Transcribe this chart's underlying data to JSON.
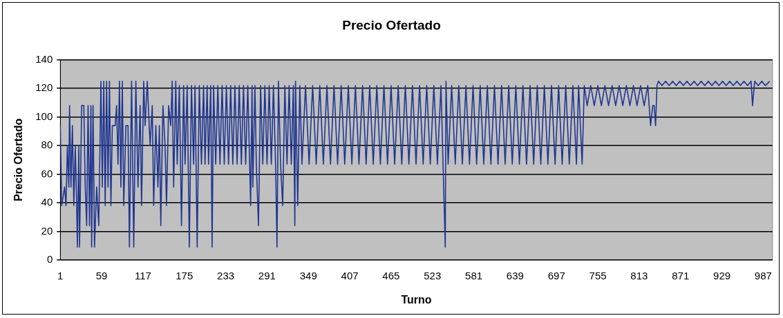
{
  "chart_data": {
    "type": "line",
    "title": "Precio Ofertado",
    "xlabel": "Turno",
    "ylabel": "Precio Ofertado",
    "xlim": [
      1,
      1000
    ],
    "xticks": [
      1,
      59,
      117,
      175,
      233,
      291,
      349,
      407,
      465,
      523,
      581,
      639,
      697,
      755,
      813,
      871,
      929,
      987
    ],
    "ylim": [
      0,
      140
    ],
    "yticks": [
      0,
      20,
      40,
      60,
      80,
      100,
      120,
      140
    ],
    "grid": "y",
    "legend": false,
    "marker": "none",
    "line_style": "solid",
    "series": [
      {
        "color": "#1f3590",
        "x": [
          1,
          3,
          7,
          9,
          11,
          13,
          14,
          16,
          18,
          20,
          22,
          24,
          25,
          27,
          28,
          31,
          34,
          36,
          38,
          40,
          42,
          44,
          45,
          47,
          49,
          52,
          55,
          58,
          60,
          62,
          64,
          66,
          68,
          70,
          72,
          74,
          76,
          78,
          80,
          82,
          84,
          86,
          88,
          90,
          93,
          96,
          98,
          101,
          104,
          107,
          110,
          113,
          115,
          118,
          120,
          123,
          127,
          130,
          132,
          135,
          138,
          140,
          142,
          145,
          148,
          150,
          153,
          156,
          158,
          160,
          163,
          165,
          168,
          171,
          174,
          176,
          179,
          182,
          185,
          188,
          190,
          193,
          196,
          199,
          202,
          204,
          207,
          209,
          212,
          214,
          216,
          219,
          222,
          225,
          228,
          231,
          234,
          237,
          240,
          243,
          246,
          249,
          252,
          255,
          258,
          261,
          264,
          268,
          270,
          271,
          274,
          276,
          279,
          282,
          285,
          288,
          291,
          294,
          297,
          300,
          303,
          305,
          307,
          310,
          313,
          316,
          319,
          322,
          325,
          328,
          330,
          331,
          334,
          337,
          340,
          345,
          350,
          355,
          360,
          365,
          370,
          375,
          380,
          385,
          390,
          395,
          400,
          405,
          410,
          415,
          420,
          425,
          430,
          435,
          440,
          445,
          450,
          455,
          460,
          465,
          470,
          475,
          480,
          485,
          490,
          495,
          500,
          505,
          510,
          515,
          520,
          525,
          530,
          535,
          541,
          542,
          545,
          550,
          555,
          560,
          565,
          570,
          575,
          580,
          585,
          590,
          595,
          600,
          605,
          610,
          615,
          620,
          625,
          630,
          635,
          640,
          645,
          650,
          655,
          660,
          665,
          670,
          675,
          680,
          685,
          690,
          695,
          700,
          705,
          710,
          715,
          720,
          725,
          728,
          733,
          736,
          740,
          745,
          750,
          755,
          760,
          765,
          770,
          775,
          780,
          785,
          790,
          795,
          800,
          805,
          810,
          815,
          820,
          825,
          829,
          832,
          834,
          836,
          838,
          840,
          845,
          850,
          855,
          860,
          865,
          870,
          875,
          880,
          885,
          890,
          895,
          900,
          905,
          910,
          915,
          920,
          925,
          930,
          935,
          940,
          945,
          950,
          955,
          960,
          965,
          970,
          972,
          975,
          980,
          985,
          990,
          996
        ],
        "values": [
          94,
          38,
          51,
          38,
          80,
          51,
          108,
          51,
          94,
          38,
          80,
          38,
          9,
          80,
          9,
          108,
          108,
          51,
          24,
          108,
          24,
          108,
          9,
          108,
          9,
          51,
          24,
          125,
          51,
          125,
          38,
          125,
          51,
          125,
          38,
          94,
          94,
          94,
          108,
          67,
          125,
          51,
          125,
          38,
          94,
          94,
          9,
          125,
          9,
          125,
          51,
          108,
          38,
          125,
          94,
          125,
          80,
          108,
          38,
          94,
          51,
          94,
          24,
          108,
          80,
          38,
          108,
          94,
          125,
          51,
          125,
          67,
          122,
          24,
          122,
          67,
          122,
          9,
          122,
          67,
          122,
          9,
          122,
          67,
          122,
          67,
          122,
          67,
          122,
          9,
          122,
          67,
          122,
          67,
          122,
          67,
          122,
          67,
          122,
          67,
          122,
          67,
          122,
          67,
          122,
          67,
          122,
          38,
          122,
          51,
          122,
          67,
          24,
          122,
          67,
          122,
          67,
          122,
          67,
          122,
          67,
          9,
          125,
          67,
          38,
          122,
          67,
          122,
          67,
          122,
          24,
          125,
          38,
          122,
          67,
          122,
          67,
          122,
          67,
          122,
          67,
          122,
          67,
          122,
          67,
          122,
          67,
          122,
          67,
          122,
          67,
          122,
          67,
          122,
          67,
          122,
          67,
          122,
          67,
          122,
          67,
          122,
          67,
          122,
          67,
          122,
          67,
          122,
          67,
          122,
          67,
          122,
          67,
          122,
          9,
          125,
          67,
          122,
          67,
          122,
          67,
          122,
          67,
          122,
          67,
          122,
          67,
          122,
          67,
          122,
          67,
          122,
          67,
          122,
          67,
          122,
          67,
          122,
          67,
          122,
          67,
          122,
          67,
          122,
          67,
          122,
          67,
          122,
          67,
          122,
          67,
          122,
          67,
          122,
          67,
          122,
          108,
          122,
          108,
          122,
          108,
          122,
          108,
          122,
          108,
          122,
          108,
          122,
          108,
          122,
          108,
          122,
          108,
          122,
          94,
          108,
          108,
          94,
          122,
          125,
          122,
          125,
          122,
          125,
          122,
          125,
          122,
          125,
          122,
          125,
          122,
          125,
          122,
          125,
          122,
          125,
          122,
          125,
          122,
          125,
          122,
          125,
          122,
          125,
          122,
          125,
          108,
          125,
          122,
          125,
          122,
          125
        ]
      }
    ]
  }
}
